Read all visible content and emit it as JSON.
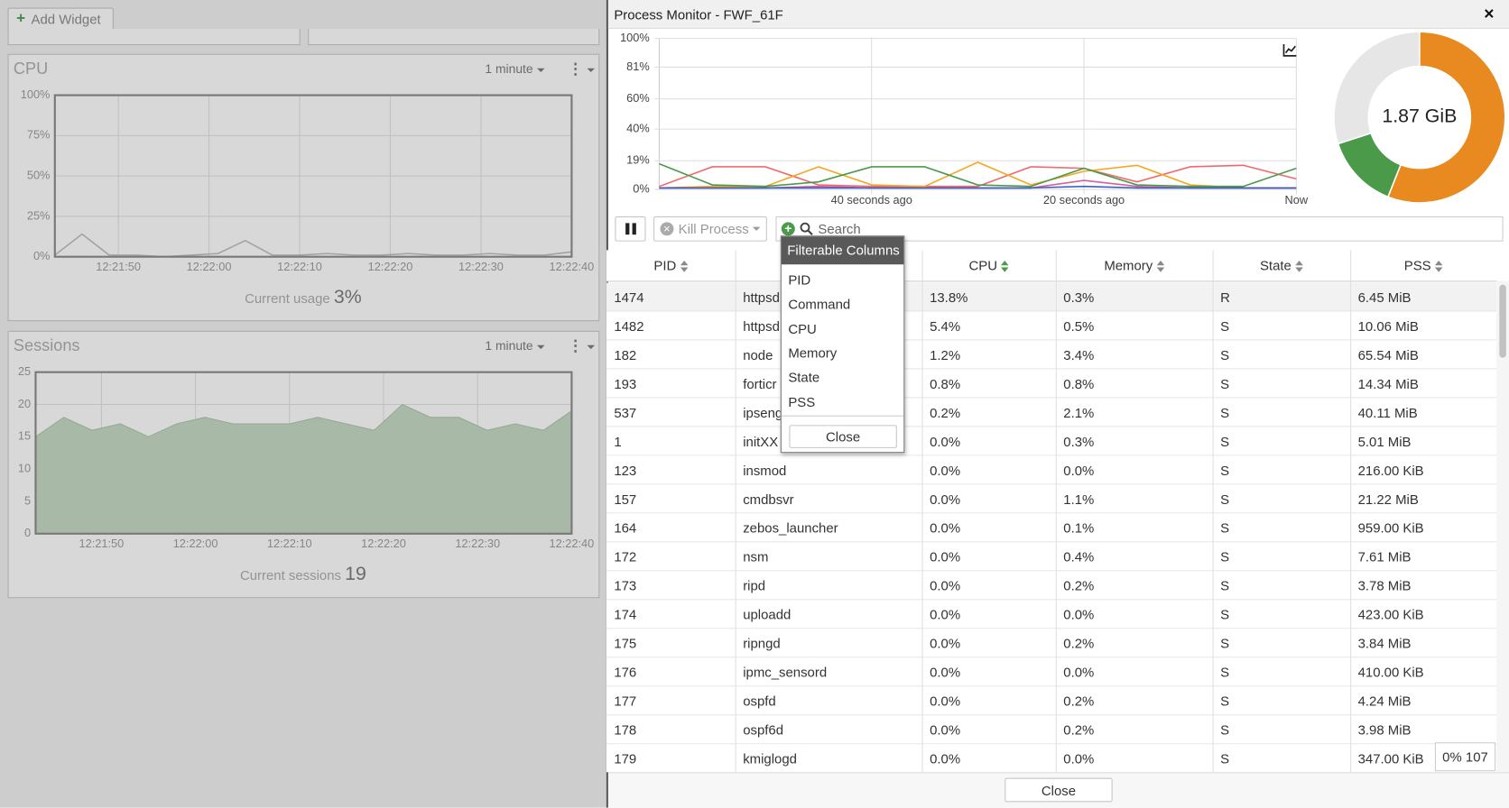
{
  "toolbar": {
    "add_widget": "Add Widget"
  },
  "cpu_widget": {
    "title": "CPU",
    "interval": "1 minute",
    "ylim": [
      0,
      100
    ],
    "yticks": [
      {
        "value": 0,
        "label": "0%"
      },
      {
        "value": 25,
        "label": "25%"
      },
      {
        "value": 50,
        "label": "50%"
      },
      {
        "value": 75,
        "label": "75%"
      },
      {
        "value": 100,
        "label": "100%"
      }
    ],
    "xlim": [
      "12:21:43",
      "12:22:40"
    ],
    "xticks": [
      "12:21:50",
      "12:22:00",
      "12:22:10",
      "12:22:20",
      "12:22:30",
      "12:22:40"
    ],
    "x": [
      "12:21:43",
      "12:21:46",
      "12:21:49",
      "12:21:52",
      "12:21:55",
      "12:21:58",
      "12:22:01",
      "12:22:04",
      "12:22:07",
      "12:22:10",
      "12:22:13",
      "12:22:16",
      "12:22:19",
      "12:22:22",
      "12:22:25",
      "12:22:28",
      "12:22:31",
      "12:22:34",
      "12:22:37",
      "12:22:40"
    ],
    "values": [
      1,
      14,
      1,
      1,
      0,
      1,
      2,
      10,
      1,
      1,
      2,
      1,
      1,
      2,
      1,
      1,
      2,
      1,
      1,
      3
    ],
    "usage_label": "Current usage",
    "usage_value": "3%"
  },
  "sessions_widget": {
    "title": "Sessions",
    "interval": "1 minute",
    "ylim": [
      0,
      25
    ],
    "yticks": [
      0,
      5,
      10,
      15,
      20,
      25
    ],
    "xlim": [
      "12:21:43",
      "12:22:40"
    ],
    "xticks": [
      "12:21:50",
      "12:22:00",
      "12:22:10",
      "12:22:20",
      "12:22:30",
      "12:22:40"
    ],
    "x": [
      "12:21:43",
      "12:21:46",
      "12:21:49",
      "12:21:52",
      "12:21:55",
      "12:21:58",
      "12:22:01",
      "12:22:04",
      "12:22:07",
      "12:22:10",
      "12:22:13",
      "12:22:16",
      "12:22:19",
      "12:22:22",
      "12:22:25",
      "12:22:28",
      "12:22:31",
      "12:22:34",
      "12:22:37",
      "12:22:40"
    ],
    "values": [
      15,
      18,
      16,
      17,
      15,
      17,
      18,
      17,
      17,
      17,
      18,
      17,
      16,
      20,
      18,
      18,
      16,
      17,
      16,
      19
    ],
    "usage_label": "Current sessions",
    "usage_value": "19"
  },
  "process_monitor": {
    "title": "Process Monitor - FWF_61F",
    "chart": {
      "type": "line",
      "ylim": [
        0,
        100
      ],
      "yticks": [
        {
          "value": 0,
          "label": "0%"
        },
        {
          "value": 19,
          "label": "19%"
        },
        {
          "value": 40,
          "label": "40%"
        },
        {
          "value": 60,
          "label": "60%"
        },
        {
          "value": 81,
          "label": "81%"
        },
        {
          "value": 100,
          "label": "100%"
        }
      ],
      "xlim": [
        -60,
        0
      ],
      "xticks": [
        {
          "value": -40,
          "label": "40 seconds ago"
        },
        {
          "value": -20,
          "label": "20 seconds ago"
        },
        {
          "value": 0,
          "label": "Now"
        }
      ],
      "x": [
        -60,
        -55,
        -50,
        -45,
        -40,
        -35,
        -30,
        -25,
        -20,
        -15,
        -10,
        -5,
        0
      ],
      "series": [
        {
          "color": "#f06a6a",
          "values": [
            2,
            15,
            15,
            3,
            2,
            2,
            2,
            15,
            14,
            5,
            15,
            16,
            7
          ]
        },
        {
          "color": "#f5a623",
          "values": [
            1,
            2,
            2,
            15,
            3,
            2,
            18,
            3,
            12,
            16,
            3,
            1,
            1
          ]
        },
        {
          "color": "#d45fa0",
          "values": [
            1,
            1,
            1,
            2,
            1,
            1,
            1,
            1,
            6,
            2,
            1,
            1,
            1
          ]
        },
        {
          "color": "#3b5fc0",
          "values": [
            1,
            1,
            1,
            1,
            1,
            1,
            1,
            1,
            2,
            1,
            1,
            1,
            1
          ]
        },
        {
          "color": "#4a9a4a",
          "values": [
            17,
            3,
            2,
            5,
            15,
            15,
            3,
            2,
            14,
            3,
            2,
            2,
            14
          ]
        }
      ]
    },
    "donut": {
      "type": "pie",
      "center_label": "1.87 GiB",
      "values": [
        56,
        14,
        30
      ],
      "colors": [
        "#e88a1f",
        "#4a9a4a",
        "#e6e6e6"
      ]
    },
    "controls": {
      "kill": "Kill Process",
      "search": "Search"
    },
    "table": {
      "columns": [
        "PID",
        null,
        "CPU",
        "Memory",
        "State",
        "PSS"
      ],
      "rows": [
        [
          "1474",
          "httpsd",
          "13.8%",
          "0.3%",
          "R",
          "6.45 MiB"
        ],
        [
          "1482",
          "httpsd",
          "5.4%",
          "0.5%",
          "S",
          "10.06 MiB"
        ],
        [
          "182",
          "node",
          "1.2%",
          "3.4%",
          "S",
          "65.54 MiB"
        ],
        [
          "193",
          "forticr",
          "0.8%",
          "0.8%",
          "S",
          "14.34 MiB"
        ],
        [
          "537",
          "ipseng",
          "0.2%",
          "2.1%",
          "S",
          "40.11 MiB"
        ],
        [
          "1",
          "initXX",
          "0.0%",
          "0.3%",
          "S",
          "5.01 MiB"
        ],
        [
          "123",
          "insmod",
          "0.0%",
          "0.0%",
          "S",
          "216.00 KiB"
        ],
        [
          "157",
          "cmdbsvr",
          "0.0%",
          "1.1%",
          "S",
          "21.22 MiB"
        ],
        [
          "164",
          "zebos_launcher",
          "0.0%",
          "0.1%",
          "S",
          "959.00 KiB"
        ],
        [
          "172",
          "nsm",
          "0.0%",
          "0.4%",
          "S",
          "7.61 MiB"
        ],
        [
          "173",
          "ripd",
          "0.0%",
          "0.2%",
          "S",
          "3.78 MiB"
        ],
        [
          "174",
          "uploadd",
          "0.0%",
          "0.0%",
          "S",
          "423.00 KiB"
        ],
        [
          "175",
          "ripngd",
          "0.0%",
          "0.2%",
          "S",
          "3.84 MiB"
        ],
        [
          "176",
          "ipmc_sensord",
          "0.0%",
          "0.0%",
          "S",
          "410.00 KiB"
        ],
        [
          "177",
          "ospfd",
          "0.0%",
          "0.2%",
          "S",
          "4.24 MiB"
        ],
        [
          "178",
          "ospf6d",
          "0.0%",
          "0.2%",
          "S",
          "3.98 MiB"
        ],
        [
          "179",
          "kmiglogd",
          "0.0%",
          "0.0%",
          "S",
          "347.00 KiB"
        ]
      ]
    },
    "filter_popup": {
      "title": "Filterable Columns",
      "items": [
        "PID",
        "Command",
        "CPU",
        "Memory",
        "State",
        "PSS"
      ],
      "close": "Close"
    },
    "status": "0% 107",
    "close": "Close"
  }
}
